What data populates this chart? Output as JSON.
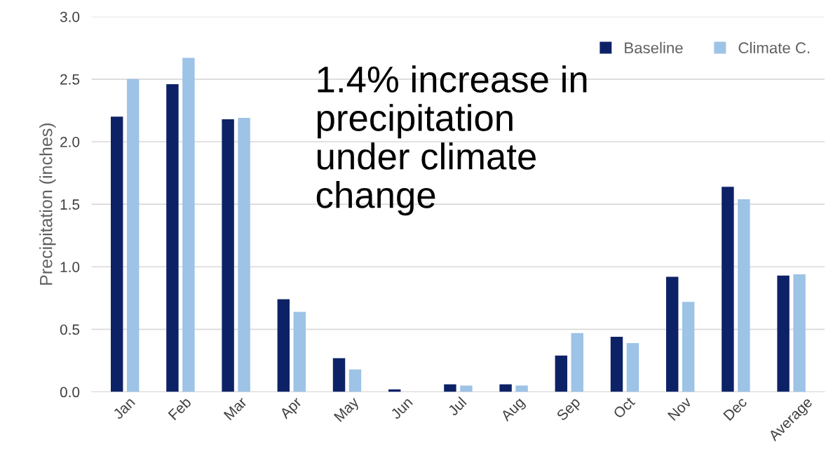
{
  "chart_data": {
    "type": "bar",
    "ylabel": "Precipitation (inches)",
    "categories": [
      "Jan",
      "Feb",
      "Mar",
      "Apr",
      "May",
      "Jun",
      "Jul",
      "Aug",
      "Sep",
      "Oct",
      "Nov",
      "Dec",
      "Average"
    ],
    "series": [
      {
        "name": "Baseline",
        "color": "#0d2266",
        "values": [
          2.2,
          2.46,
          2.18,
          0.74,
          0.27,
          0.02,
          0.06,
          0.06,
          0.29,
          0.44,
          0.92,
          1.64,
          0.93
        ]
      },
      {
        "name": "Climate C.",
        "color": "#9dc3e6",
        "values": [
          2.5,
          2.67,
          2.19,
          0.64,
          0.18,
          null,
          0.05,
          0.05,
          0.47,
          0.39,
          0.72,
          1.54,
          0.94
        ]
      }
    ],
    "ylim": [
      0,
      3
    ],
    "yticks": [
      {
        "value": 0,
        "label": "0.0"
      },
      {
        "value": 0.5,
        "label": "0.5"
      },
      {
        "value": 1,
        "label": "1.0"
      },
      {
        "value": 1.5,
        "label": "1.5"
      },
      {
        "value": 2,
        "label": "2.0"
      },
      {
        "value": 2.5,
        "label": "2.5"
      },
      {
        "value": 3,
        "label": "3.0"
      }
    ],
    "grid": "y",
    "legend": "top right",
    "annotations": [
      "1.4% increase in\nprecipitation\nunder climate\nchange"
    ]
  }
}
